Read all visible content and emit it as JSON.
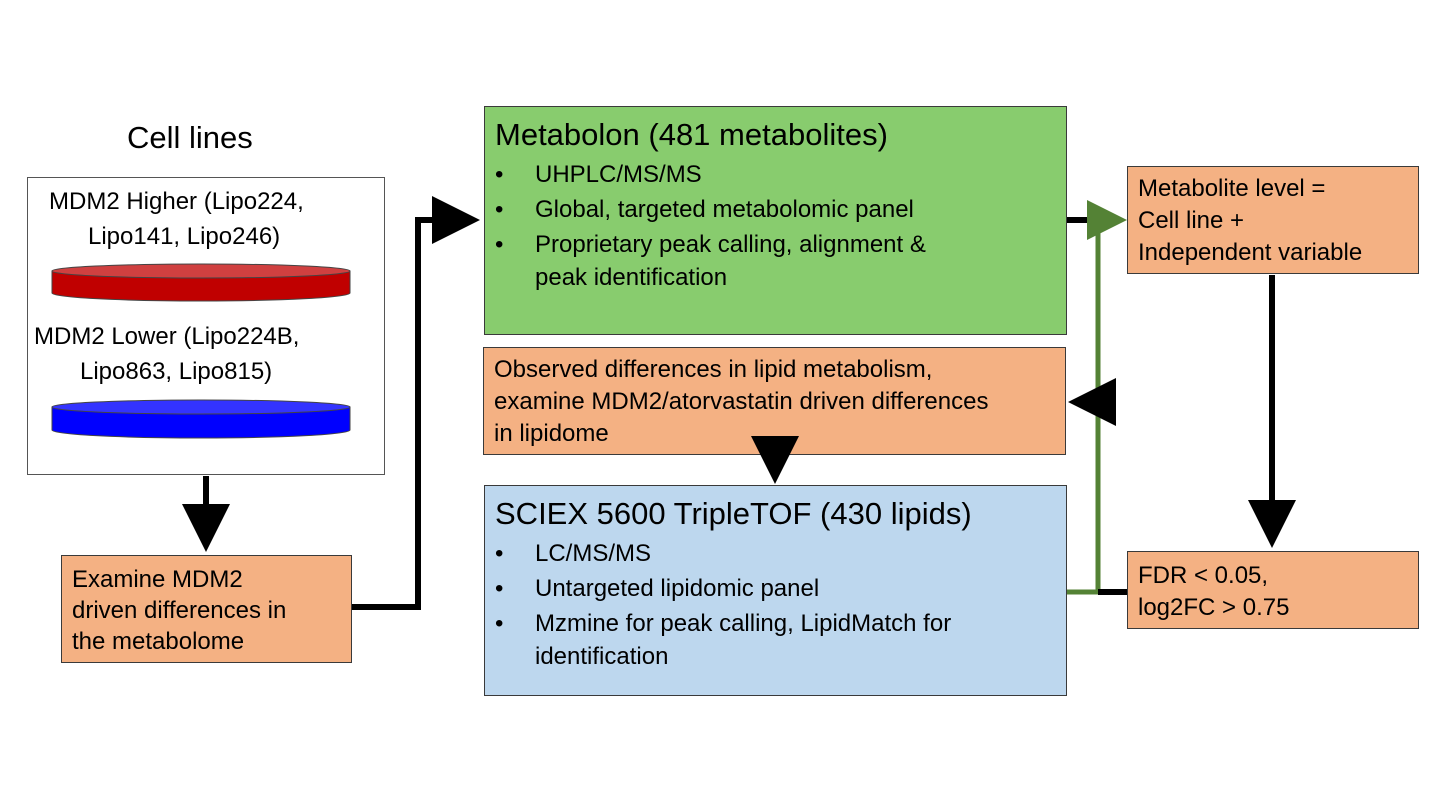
{
  "cell_lines": {
    "heading": "Cell lines",
    "higher_line1": "MDM2 Higher (Lipo224,",
    "higher_line2": "Lipo141, Lipo246)",
    "lower_line1": "MDM2 Lower (Lipo224B,",
    "lower_line2": "Lipo863, Lipo815)",
    "higher_dish_color": "#c00000",
    "lower_dish_color": "#0000ff"
  },
  "examine_box": {
    "line1": "Examine MDM2",
    "line2": "driven differences in",
    "line3": "the metabolome"
  },
  "metabolon_box": {
    "title": "Metabolon (481 metabolites)",
    "bullets": [
      "UHPLC/MS/MS",
      "Global, targeted metabolomic panel",
      "Proprietary peak calling, alignment &",
      "peak identification"
    ]
  },
  "observed_box": {
    "line1": "Observed differences in lipid metabolism,",
    "line2": "examine MDM2/atorvastatin driven differences",
    "line3": "in lipidome"
  },
  "sciex_box": {
    "title": "SCIEX 5600 TripleTOF (430 lipids)",
    "bullets": [
      "LC/MS/MS",
      "Untargeted lipidomic panel",
      "Mzmine for peak calling, LipidMatch for",
      "identification"
    ]
  },
  "metabolite_level_box": {
    "line1": "Metabolite level =",
    "line2": "Cell line +",
    "line3": "Independent variable"
  },
  "fdr_box": {
    "line1": "FDR < 0.05,",
    "line2": "log2FC > 0.75"
  },
  "colors": {
    "orange_box": "#f4b183",
    "green_box": "#88cc6e",
    "blue_box": "#bdd7ee",
    "green_connector": "#548235",
    "arrow": "#000000"
  }
}
